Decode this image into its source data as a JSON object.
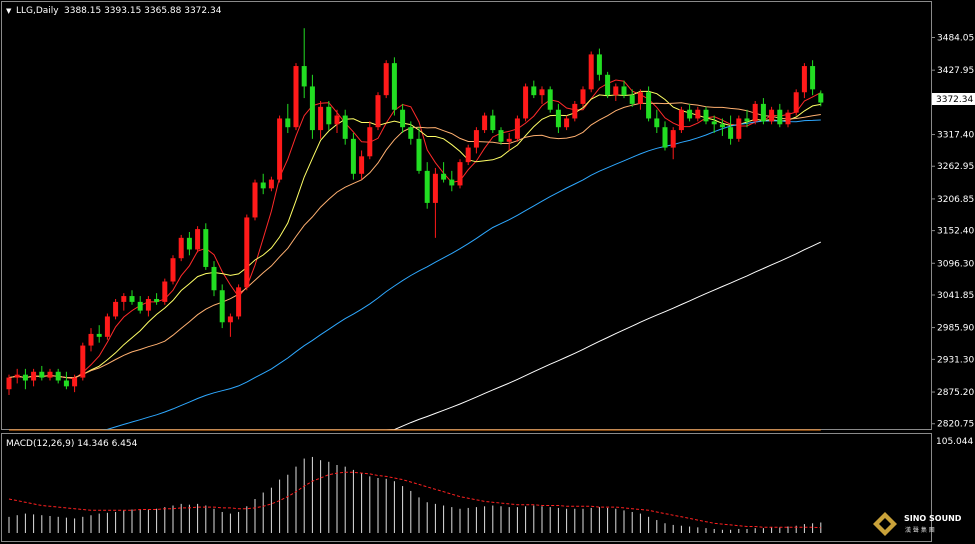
{
  "header": {
    "arrow": "▼",
    "symbol": "LLG,Daily",
    "ohlc": "3388.15 3393.15 3365.88 3372.34"
  },
  "macd_header": "MACD(12,26,9) 14.346 6.454",
  "macd_top_label": "105.044",
  "current_price_label": "3372.34",
  "logo": {
    "name": "SINO SOUND",
    "sub": "漢 聲 集 團"
  },
  "colors": {
    "background": "#000000",
    "up": "#ff1a1a",
    "down": "#22dd22",
    "ma_fast": "#ff2a2a",
    "ma_mid": "#ffff66",
    "ma_slow": "#ffb070",
    "ma_60": "#2ea8ff",
    "ma_120": "#ffffff",
    "ma_250": "#ff8a1e",
    "macd_bar": "#e0e0e0",
    "macd_signal": "#ff2020"
  },
  "chart_data": {
    "type": "candlestick",
    "timeframe": "Daily",
    "ylim": [
      2810,
      3545
    ],
    "yticks": [
      "3484.05",
      "3427.95",
      "3317.40",
      "3262.95",
      "3206.85",
      "3152.40",
      "3096.30",
      "3041.85",
      "2985.90",
      "2931.30",
      "2875.20",
      "2820.75"
    ],
    "last_price": 3372.34,
    "candles": [
      [
        2880,
        2905,
        2870,
        2900
      ],
      [
        2900,
        2915,
        2890,
        2905
      ],
      [
        2905,
        2915,
        2880,
        2895
      ],
      [
        2895,
        2915,
        2885,
        2910
      ],
      [
        2910,
        2920,
        2895,
        2900
      ],
      [
        2900,
        2915,
        2895,
        2910
      ],
      [
        2910,
        2915,
        2890,
        2895
      ],
      [
        2895,
        2910,
        2880,
        2885
      ],
      [
        2885,
        2905,
        2875,
        2900
      ],
      [
        2900,
        2960,
        2895,
        2955
      ],
      [
        2955,
        2985,
        2945,
        2975
      ],
      [
        2975,
        2990,
        2960,
        2970
      ],
      [
        2970,
        3010,
        2965,
        3005
      ],
      [
        3005,
        3035,
        3000,
        3030
      ],
      [
        3030,
        3045,
        3015,
        3040
      ],
      [
        3040,
        3050,
        3025,
        3030
      ],
      [
        3030,
        3040,
        3010,
        3015
      ],
      [
        3015,
        3040,
        3005,
        3035
      ],
      [
        3035,
        3045,
        3025,
        3030
      ],
      [
        3030,
        3070,
        3025,
        3065
      ],
      [
        3065,
        3110,
        3060,
        3105
      ],
      [
        3105,
        3145,
        3100,
        3140
      ],
      [
        3140,
        3150,
        3110,
        3120
      ],
      [
        3120,
        3160,
        3115,
        3155
      ],
      [
        3155,
        3165,
        3085,
        3090
      ],
      [
        3090,
        3100,
        3040,
        3050
      ],
      [
        3050,
        3060,
        2985,
        2995
      ],
      [
        2995,
        3010,
        2970,
        3005
      ],
      [
        3005,
        3060,
        3000,
        3055
      ],
      [
        3055,
        3180,
        3050,
        3175
      ],
      [
        3175,
        3240,
        3170,
        3235
      ],
      [
        3235,
        3250,
        3215,
        3225
      ],
      [
        3225,
        3245,
        3220,
        3240
      ],
      [
        3240,
        3350,
        3235,
        3345
      ],
      [
        3345,
        3370,
        3320,
        3330
      ],
      [
        3330,
        3440,
        3325,
        3435
      ],
      [
        3435,
        3500,
        3380,
        3400
      ],
      [
        3400,
        3420,
        3310,
        3325
      ],
      [
        3325,
        3375,
        3310,
        3365
      ],
      [
        3365,
        3375,
        3325,
        3335
      ],
      [
        3335,
        3360,
        3320,
        3350
      ],
      [
        3350,
        3360,
        3300,
        3310
      ],
      [
        3310,
        3320,
        3240,
        3250
      ],
      [
        3250,
        3290,
        3240,
        3280
      ],
      [
        3280,
        3340,
        3275,
        3330
      ],
      [
        3330,
        3390,
        3325,
        3385
      ],
      [
        3385,
        3445,
        3380,
        3440
      ],
      [
        3440,
        3450,
        3350,
        3360
      ],
      [
        3360,
        3370,
        3320,
        3330
      ],
      [
        3330,
        3340,
        3300,
        3310
      ],
      [
        3310,
        3330,
        3250,
        3255
      ],
      [
        3255,
        3270,
        3190,
        3200
      ],
      [
        3200,
        3260,
        3140,
        3250
      ],
      [
        3250,
        3270,
        3235,
        3240
      ],
      [
        3240,
        3255,
        3220,
        3230
      ],
      [
        3230,
        3275,
        3225,
        3270
      ],
      [
        3270,
        3300,
        3265,
        3295
      ],
      [
        3295,
        3330,
        3285,
        3325
      ],
      [
        3325,
        3355,
        3320,
        3350
      ],
      [
        3350,
        3360,
        3320,
        3325
      ],
      [
        3325,
        3330,
        3300,
        3305
      ],
      [
        3305,
        3320,
        3290,
        3310
      ],
      [
        3310,
        3350,
        3305,
        3345
      ],
      [
        3345,
        3405,
        3340,
        3400
      ],
      [
        3400,
        3410,
        3380,
        3385
      ],
      [
        3385,
        3400,
        3370,
        3395
      ],
      [
        3395,
        3400,
        3355,
        3360
      ],
      [
        3360,
        3370,
        3320,
        3330
      ],
      [
        3330,
        3350,
        3325,
        3345
      ],
      [
        3345,
        3375,
        3340,
        3370
      ],
      [
        3370,
        3400,
        3365,
        3395
      ],
      [
        3395,
        3460,
        3390,
        3455
      ],
      [
        3455,
        3465,
        3410,
        3420
      ],
      [
        3420,
        3425,
        3380,
        3385
      ],
      [
        3385,
        3405,
        3375,
        3400
      ],
      [
        3400,
        3410,
        3380,
        3385
      ],
      [
        3385,
        3395,
        3365,
        3370
      ],
      [
        3370,
        3395,
        3360,
        3390
      ],
      [
        3390,
        3400,
        3340,
        3345
      ],
      [
        3345,
        3360,
        3320,
        3330
      ],
      [
        3330,
        3340,
        3290,
        3295
      ],
      [
        3295,
        3330,
        3275,
        3325
      ],
      [
        3325,
        3365,
        3320,
        3360
      ],
      [
        3360,
        3370,
        3340,
        3345
      ],
      [
        3345,
        3365,
        3340,
        3360
      ],
      [
        3360,
        3365,
        3335,
        3340
      ],
      [
        3340,
        3350,
        3320,
        3335
      ],
      [
        3335,
        3345,
        3315,
        3330
      ],
      [
        3330,
        3350,
        3300,
        3310
      ],
      [
        3310,
        3350,
        3305,
        3345
      ],
      [
        3345,
        3360,
        3330,
        3340
      ],
      [
        3340,
        3375,
        3335,
        3370
      ],
      [
        3370,
        3380,
        3335,
        3340
      ],
      [
        3340,
        3365,
        3335,
        3360
      ],
      [
        3360,
        3370,
        3330,
        3335
      ],
      [
        3335,
        3360,
        3330,
        3355
      ],
      [
        3355,
        3395,
        3350,
        3390
      ],
      [
        3390,
        3440,
        3380,
        3435
      ],
      [
        3435,
        3445,
        3385,
        3395
      ],
      [
        3388.15,
        3393.15,
        3365.88,
        3372.34
      ]
    ],
    "ma_periods": [
      5,
      10,
      20,
      60,
      120,
      250
    ],
    "macd": {
      "params": [
        12,
        26,
        9
      ],
      "value": 14.346,
      "signal_value": 6.454,
      "top_label": 105.044,
      "histogram": [
        20,
        22,
        24,
        23,
        22,
        21,
        20,
        19,
        18,
        20,
        22,
        24,
        25,
        26,
        28,
        29,
        29,
        29,
        30,
        32,
        34,
        36,
        35,
        36,
        34,
        30,
        26,
        24,
        26,
        33,
        42,
        50,
        56,
        66,
        72,
        82,
        92,
        94,
        90,
        88,
        84,
        82,
        78,
        74,
        70,
        68,
        67,
        64,
        58,
        52,
        44,
        38,
        36,
        34,
        32,
        30,
        31,
        32,
        33,
        34,
        33,
        32,
        32,
        33,
        34,
        33,
        32,
        31,
        30,
        30,
        30,
        31,
        32,
        31,
        30,
        28,
        26,
        24,
        20,
        16,
        12,
        10,
        9,
        8,
        7,
        6,
        5,
        4,
        4,
        5,
        5,
        6,
        6,
        7,
        7,
        8,
        9,
        11,
        12,
        13
      ],
      "signal": [
        42,
        40,
        38,
        36,
        34,
        33,
        32,
        31,
        30,
        29,
        28,
        28,
        28,
        28,
        28,
        28,
        29,
        29,
        29,
        30,
        30,
        31,
        31,
        32,
        32,
        32,
        31,
        31,
        30,
        30,
        31,
        33,
        36,
        40,
        45,
        51,
        58,
        64,
        68,
        72,
        74,
        75,
        75,
        74,
        73,
        71,
        70,
        68,
        66,
        63,
        60,
        57,
        54,
        51,
        48,
        45,
        43,
        41,
        39,
        38,
        37,
        36,
        35,
        35,
        35,
        34,
        34,
        34,
        33,
        33,
        33,
        33,
        32,
        32,
        32,
        31,
        30,
        29,
        28,
        26,
        24,
        22,
        20,
        18,
        16,
        14,
        12,
        11,
        10,
        9,
        8,
        8,
        7,
        7,
        7,
        7,
        7,
        7,
        7,
        6.5
      ]
    }
  }
}
